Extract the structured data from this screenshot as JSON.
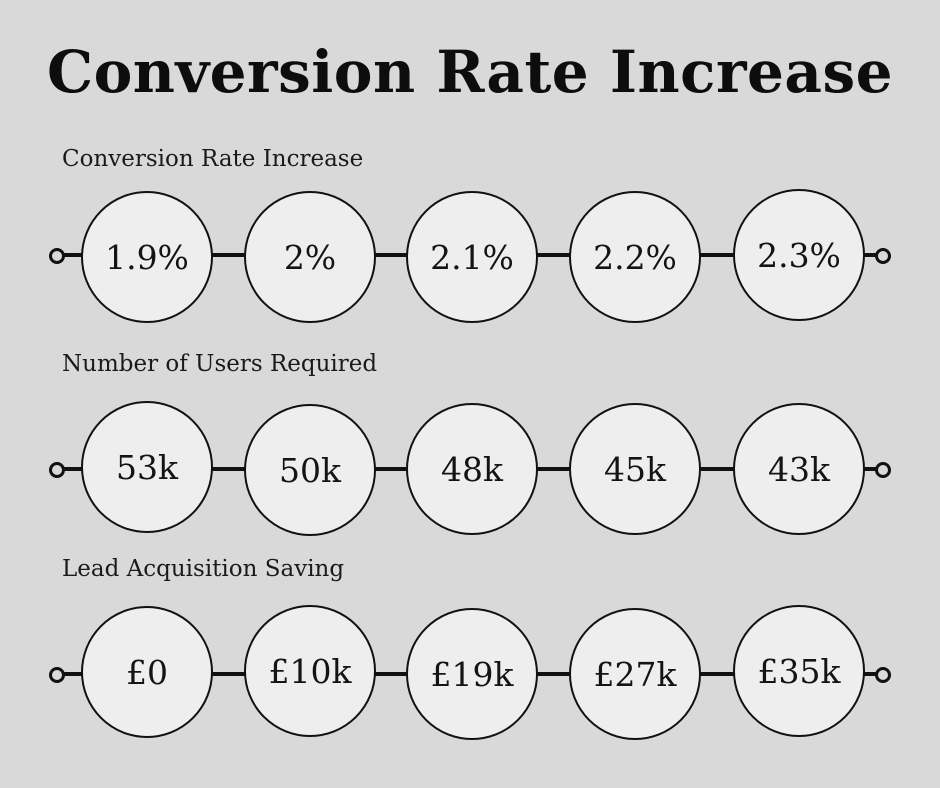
{
  "title": "Conversion Rate Increase",
  "rows": [
    {
      "label": "Conversion Rate Increase",
      "values": [
        "1.9%",
        "2%",
        "2.1%",
        "2.2%",
        "2.3%"
      ]
    },
    {
      "label": "Number of Users Required",
      "values": [
        "53k",
        "50k",
        "48k",
        "45k",
        "43k"
      ]
    },
    {
      "label": "Lead Acquisition Saving",
      "values": [
        "£0",
        "£10k",
        "£19k",
        "£27k",
        "£35k"
      ]
    }
  ]
}
